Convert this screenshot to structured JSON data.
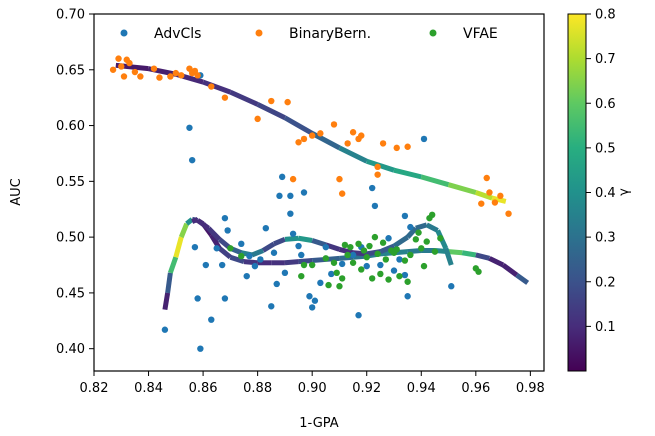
{
  "chart_data": {
    "type": "scatter",
    "xlabel": "1-GPA",
    "ylabel": "AUC",
    "xlim": [
      0.82,
      0.985
    ],
    "ylim": [
      0.38,
      0.7
    ],
    "x_ticks": [
      "0.82",
      "0.84",
      "0.86",
      "0.88",
      "0.90",
      "0.92",
      "0.94",
      "0.96",
      "0.98"
    ],
    "x_tick_values": [
      0.82,
      0.84,
      0.86,
      0.88,
      0.9,
      0.92,
      0.94,
      0.96,
      0.98
    ],
    "y_ticks": [
      "0.40",
      "0.45",
      "0.50",
      "0.55",
      "0.60",
      "0.65",
      "0.70"
    ],
    "y_tick_values": [
      0.4,
      0.45,
      0.5,
      0.55,
      0.6,
      0.65,
      0.7
    ],
    "grid": false,
    "legend_position": "top",
    "series": [
      {
        "name": "AdvCls",
        "color": "#1f77b4",
        "points": [
          [
            0.846,
            0.417
          ],
          [
            0.855,
            0.598
          ],
          [
            0.856,
            0.569
          ],
          [
            0.857,
            0.491
          ],
          [
            0.858,
            0.445
          ],
          [
            0.859,
            0.645
          ],
          [
            0.859,
            0.4
          ],
          [
            0.861,
            0.475
          ],
          [
            0.863,
            0.426
          ],
          [
            0.865,
            0.49
          ],
          [
            0.867,
            0.475
          ],
          [
            0.868,
            0.517
          ],
          [
            0.868,
            0.445
          ],
          [
            0.869,
            0.506
          ],
          [
            0.874,
            0.494
          ],
          [
            0.876,
            0.465
          ],
          [
            0.877,
            0.483
          ],
          [
            0.879,
            0.474
          ],
          [
            0.881,
            0.48
          ],
          [
            0.883,
            0.508
          ],
          [
            0.885,
            0.438
          ],
          [
            0.886,
            0.486
          ],
          [
            0.887,
            0.458
          ],
          [
            0.888,
            0.537
          ],
          [
            0.889,
            0.554
          ],
          [
            0.89,
            0.468
          ],
          [
            0.892,
            0.537
          ],
          [
            0.892,
            0.521
          ],
          [
            0.893,
            0.503
          ],
          [
            0.895,
            0.492
          ],
          [
            0.896,
            0.484
          ],
          [
            0.897,
            0.54
          ],
          [
            0.899,
            0.447
          ],
          [
            0.9,
            0.437
          ],
          [
            0.901,
            0.443
          ],
          [
            0.903,
            0.459
          ],
          [
            0.905,
            0.491
          ],
          [
            0.907,
            0.467
          ],
          [
            0.911,
            0.476
          ],
          [
            0.915,
            0.484
          ],
          [
            0.917,
            0.43
          ],
          [
            0.918,
            0.491
          ],
          [
            0.92,
            0.474
          ],
          [
            0.922,
            0.544
          ],
          [
            0.923,
            0.528
          ],
          [
            0.925,
            0.475
          ],
          [
            0.928,
            0.499
          ],
          [
            0.93,
            0.47
          ],
          [
            0.932,
            0.48
          ],
          [
            0.934,
            0.466
          ],
          [
            0.934,
            0.519
          ],
          [
            0.935,
            0.447
          ],
          [
            0.936,
            0.509
          ],
          [
            0.941,
            0.588
          ],
          [
            0.951,
            0.456
          ]
        ]
      },
      {
        "name": "BinaryBern.",
        "color": "#ff7f0e",
        "points": [
          [
            0.827,
            0.65
          ],
          [
            0.829,
            0.66
          ],
          [
            0.83,
            0.653
          ],
          [
            0.831,
            0.644
          ],
          [
            0.832,
            0.659
          ],
          [
            0.833,
            0.656
          ],
          [
            0.835,
            0.648
          ],
          [
            0.837,
            0.644
          ],
          [
            0.842,
            0.651
          ],
          [
            0.844,
            0.643
          ],
          [
            0.848,
            0.644
          ],
          [
            0.85,
            0.647
          ],
          [
            0.852,
            0.645
          ],
          [
            0.855,
            0.651
          ],
          [
            0.856,
            0.647
          ],
          [
            0.857,
            0.649
          ],
          [
            0.858,
            0.645
          ],
          [
            0.863,
            0.635
          ],
          [
            0.868,
            0.625
          ],
          [
            0.88,
            0.606
          ],
          [
            0.885,
            0.622
          ],
          [
            0.891,
            0.621
          ],
          [
            0.893,
            0.552
          ],
          [
            0.895,
            0.585
          ],
          [
            0.897,
            0.588
          ],
          [
            0.9,
            0.591
          ],
          [
            0.903,
            0.593
          ],
          [
            0.908,
            0.601
          ],
          [
            0.91,
            0.552
          ],
          [
            0.911,
            0.539
          ],
          [
            0.913,
            0.584
          ],
          [
            0.915,
            0.594
          ],
          [
            0.917,
            0.588
          ],
          [
            0.918,
            0.591
          ],
          [
            0.924,
            0.563
          ],
          [
            0.924,
            0.556
          ],
          [
            0.926,
            0.584
          ],
          [
            0.931,
            0.58
          ],
          [
            0.935,
            0.581
          ],
          [
            0.962,
            0.53
          ],
          [
            0.964,
            0.553
          ],
          [
            0.965,
            0.54
          ],
          [
            0.967,
            0.531
          ],
          [
            0.969,
            0.537
          ],
          [
            0.972,
            0.521
          ]
        ]
      },
      {
        "name": "VFAE",
        "color": "#2ca02c",
        "points": [
          [
            0.87,
            0.49
          ],
          [
            0.874,
            0.483
          ],
          [
            0.896,
            0.465
          ],
          [
            0.897,
            0.475
          ],
          [
            0.9,
            0.475
          ],
          [
            0.905,
            0.481
          ],
          [
            0.906,
            0.457
          ],
          [
            0.908,
            0.477
          ],
          [
            0.909,
            0.468
          ],
          [
            0.91,
            0.456
          ],
          [
            0.911,
            0.463
          ],
          [
            0.912,
            0.493
          ],
          [
            0.913,
            0.484
          ],
          [
            0.914,
            0.491
          ],
          [
            0.915,
            0.477
          ],
          [
            0.917,
            0.494
          ],
          [
            0.918,
            0.471
          ],
          [
            0.919,
            0.488
          ],
          [
            0.92,
            0.482
          ],
          [
            0.921,
            0.492
          ],
          [
            0.922,
            0.463
          ],
          [
            0.923,
            0.5
          ],
          [
            0.924,
            0.485
          ],
          [
            0.925,
            0.467
          ],
          [
            0.926,
            0.495
          ],
          [
            0.927,
            0.48
          ],
          [
            0.928,
            0.462
          ],
          [
            0.929,
            0.488
          ],
          [
            0.93,
            0.486
          ],
          [
            0.931,
            0.489
          ],
          [
            0.932,
            0.465
          ],
          [
            0.934,
            0.479
          ],
          [
            0.935,
            0.46
          ],
          [
            0.936,
            0.484
          ],
          [
            0.938,
            0.498
          ],
          [
            0.939,
            0.504
          ],
          [
            0.94,
            0.49
          ],
          [
            0.941,
            0.474
          ],
          [
            0.942,
            0.496
          ],
          [
            0.943,
            0.517
          ],
          [
            0.944,
            0.52
          ],
          [
            0.945,
            0.487
          ],
          [
            0.947,
            0.499
          ],
          [
            0.96,
            0.472
          ],
          [
            0.961,
            0.469
          ]
        ]
      }
    ],
    "curves": [
      {
        "points": [
          [
            0.828,
            0.654,
            0.05
          ],
          [
            0.84,
            0.651,
            0.06
          ],
          [
            0.85,
            0.646,
            0.08
          ],
          [
            0.86,
            0.639,
            0.1
          ],
          [
            0.87,
            0.63,
            0.12
          ],
          [
            0.88,
            0.619,
            0.15
          ],
          [
            0.89,
            0.607,
            0.18
          ],
          [
            0.9,
            0.593,
            0.22
          ],
          [
            0.91,
            0.58,
            0.3
          ],
          [
            0.92,
            0.568,
            0.4
          ],
          [
            0.93,
            0.56,
            0.45
          ],
          [
            0.94,
            0.554,
            0.5
          ],
          [
            0.95,
            0.547,
            0.6
          ],
          [
            0.96,
            0.54,
            0.68
          ],
          [
            0.966,
            0.535,
            0.75
          ],
          [
            0.971,
            0.532,
            0.8
          ]
        ]
      },
      {
        "points": [
          [
            0.846,
            0.435,
            0.05
          ],
          [
            0.847,
            0.45,
            0.1
          ],
          [
            0.848,
            0.468,
            0.35
          ],
          [
            0.85,
            0.482,
            0.75
          ],
          [
            0.852,
            0.5,
            0.8
          ],
          [
            0.854,
            0.512,
            0.5
          ],
          [
            0.856,
            0.516,
            0.3
          ],
          [
            0.858,
            0.515,
            0.1
          ],
          [
            0.86,
            0.512,
            0.05
          ],
          [
            0.863,
            0.502,
            0.05
          ],
          [
            0.866,
            0.49,
            0.1
          ],
          [
            0.87,
            0.482,
            0.2
          ],
          [
            0.875,
            0.478,
            0.15
          ],
          [
            0.88,
            0.477,
            0.1
          ],
          [
            0.885,
            0.477,
            0.1
          ],
          [
            0.89,
            0.477,
            0.12
          ],
          [
            0.895,
            0.478,
            0.15
          ],
          [
            0.9,
            0.479,
            0.2
          ],
          [
            0.905,
            0.48,
            0.25
          ],
          [
            0.91,
            0.481,
            0.25
          ],
          [
            0.915,
            0.482,
            0.3
          ],
          [
            0.92,
            0.483,
            0.3
          ],
          [
            0.925,
            0.485,
            0.35
          ],
          [
            0.93,
            0.486,
            0.35
          ],
          [
            0.935,
            0.487,
            0.35
          ],
          [
            0.94,
            0.488,
            0.3
          ],
          [
            0.945,
            0.488,
            0.35
          ],
          [
            0.95,
            0.487,
            0.4
          ],
          [
            0.955,
            0.486,
            0.8
          ],
          [
            0.96,
            0.484,
            0.25
          ],
          [
            0.965,
            0.481,
            0.1
          ],
          [
            0.97,
            0.475,
            0.05
          ],
          [
            0.975,
            0.466,
            0.1
          ],
          [
            0.979,
            0.459,
            0.35
          ]
        ]
      },
      {
        "points": [
          [
            0.858,
            0.515,
            0.1
          ],
          [
            0.862,
            0.508,
            0.1
          ],
          [
            0.866,
            0.498,
            0.15
          ],
          [
            0.87,
            0.49,
            0.2
          ],
          [
            0.874,
            0.486,
            0.3
          ],
          [
            0.878,
            0.484,
            0.4
          ],
          [
            0.882,
            0.488,
            0.25
          ],
          [
            0.886,
            0.494,
            0.1
          ],
          [
            0.89,
            0.498,
            0.25
          ],
          [
            0.895,
            0.499,
            0.55
          ],
          [
            0.9,
            0.497,
            0.3
          ],
          [
            0.905,
            0.493,
            0.15
          ],
          [
            0.91,
            0.489,
            0.1
          ],
          [
            0.915,
            0.486,
            0.1
          ],
          [
            0.92,
            0.485,
            0.15
          ],
          [
            0.925,
            0.487,
            0.2
          ],
          [
            0.93,
            0.492,
            0.25
          ],
          [
            0.935,
            0.5,
            0.3
          ],
          [
            0.938,
            0.508,
            0.25
          ],
          [
            0.942,
            0.511,
            0.3
          ],
          [
            0.946,
            0.506,
            0.35
          ],
          [
            0.949,
            0.49,
            0.4
          ],
          [
            0.951,
            0.475,
            0.3
          ]
        ]
      },
      {
        "points": [
          [
            0.858,
            0.516,
            0.1
          ],
          [
            0.856,
            0.514,
            0.1
          ]
        ]
      }
    ],
    "colorbar": {
      "label": "γ",
      "ticks": [
        "0.1",
        "0.2",
        "0.3",
        "0.4",
        "0.5",
        "0.6",
        "0.7",
        "0.8"
      ],
      "tick_values": [
        0.1,
        0.2,
        0.3,
        0.4,
        0.5,
        0.6,
        0.7,
        0.8
      ],
      "range": [
        0.0,
        0.8
      ],
      "colormap": "viridis"
    }
  }
}
